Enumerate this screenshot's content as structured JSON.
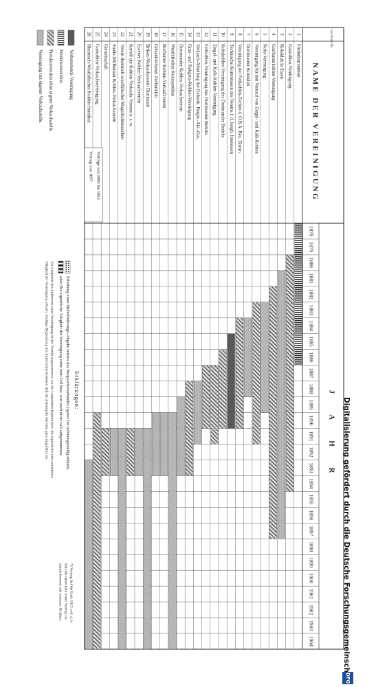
{
  "header": {
    "nr_label": "Lau-fende Nr.",
    "name_label": "NAME DER VEREINIGUNG",
    "years_label": "J A H R"
  },
  "years": [
    1878,
    1879,
    1880,
    1881,
    1882,
    1883,
    1884,
    1885,
    1886,
    1887,
    1888,
    1889,
    1890,
    1891,
    1892,
    1893,
    1894,
    1895,
    1896,
    1897,
    1898,
    1899,
    1900,
    1901,
    1902,
    1903,
    1904
  ],
  "rows": [
    {
      "nr": 1,
      "name": "Förderkonvention",
      "start": 1878,
      "end": 1886,
      "pattern": "vertical-stripes"
    },
    {
      "nr": 2,
      "name": "Gaskohlen-Vereinigung",
      "start": 1880,
      "end": 1894,
      "pattern": "diagonal-hatch"
    },
    {
      "nr": 3,
      "name": "Koksklub in Essen",
      "start": 1881,
      "end": 1897,
      "pattern": "solid-light"
    },
    {
      "nr": 4,
      "name": "Gasflammkohlen-Vereinigung",
      "start": 1882,
      "end": 1897,
      "pattern": "diagonal-hatch"
    },
    {
      "nr": 5,
      "name": "Koks-Vereinigung",
      "start": 1883,
      "end": 1889,
      "pattern": "solid-light"
    },
    {
      "nr": 6,
      "name": "Vereinigung für den Verkauf von Ziegel- und Kalk-Kohlen",
      "start": 1883,
      "end": 1891,
      "pattern": "diagonal-hatch"
    },
    {
      "nr": 7,
      "name": "Dortmunder Koksklub",
      "start": 1884,
      "end": 1888,
      "pattern": "solid-light"
    },
    {
      "nr": 8,
      "name": "Vereinigung der Fettkohlen-Zechen d. O.B.A. Bez. Dortm.",
      "start": 1884,
      "end": 1890,
      "pattern": "diagonal-hatch"
    },
    {
      "nr": 9,
      "name": "Technische Kommission des Vereins f. d. bergb. Interessen",
      "start": 1885,
      "end": 1890,
      "pattern": "solid-dark"
    },
    {
      "nr": 10,
      "name": "Kokskohlen-Vereinigung des Dortmunder Bezirks",
      "start": 1886,
      "end": 1890,
      "pattern": "diagonal-hatch"
    },
    {
      "nr": 11,
      "name": "Ziegel- und Kalk-Kohlen-Vereinigung",
      "start": 1887,
      "end": 1891,
      "pattern": "diagonal-hatch"
    },
    {
      "nr": 12,
      "name": "Fettkohlen-Vereinigung des Dortmunder Bezirks",
      "start": 1887,
      "end": 1890,
      "pattern": "diagonal-hatch"
    },
    {
      "nr": 13,
      "name": "Verkaufs-Abteilung der Gelsenk. Bergw.-Akt.-Ges.",
      "start": 1888,
      "end": 1891,
      "pattern": "solid-light"
    },
    {
      "nr": 14,
      "name": "Grus- und Siebgrus-Kohlen-Vereinigung",
      "start": 1888,
      "end": 1893,
      "pattern": "diagonal-hatch"
    },
    {
      "nr": 15,
      "name": "Dortmunder Kohlen-Verkaufsverein",
      "start": 1889,
      "end": 1893,
      "pattern": "solid-light"
    },
    {
      "nr": 16,
      "name": "Westfälisches Kokssyndikat",
      "start": 1890,
      "end": 1904,
      "pattern": "solid-light"
    },
    {
      "nr": 17,
      "name": "Bochumer Kohlen-Verkaufsverein",
      "start": 1890,
      "end": 1893,
      "pattern": "solid-light"
    },
    {
      "nr": 18,
      "name": "Gelsenkirchener Zechenklub",
      "start": 1890,
      "end": 1893,
      "pattern": "solid-light"
    },
    {
      "nr": 19,
      "name": "Brikett-Verkaufsverein Dortmund",
      "start": 1891,
      "end": 1904,
      "pattern": "solid-light"
    },
    {
      "nr": 20,
      "name": "Essener Kohlen-Verkaufsverein",
      "start": 1891,
      "end": 1893,
      "pattern": "solid-light"
    },
    {
      "nr": 21,
      "name": "Kartell der Kohlen-Verkaufs-Vereine u. s. w.",
      "start": 1891,
      "end": 1893,
      "pattern": "diagonal-hatch"
    },
    {
      "nr": 22,
      "name": "Verein rheinisch-westfälischer Magerkohlenzechen",
      "start": 1891,
      "end": 1904,
      "pattern": "solid-light"
    },
    {
      "nr": 23,
      "name": "Steele-Mülheimer Kohlen-Verkaufsverein",
      "start": 1891,
      "end": 1893,
      "pattern": "solid-light"
    },
    {
      "nr": 24,
      "name": "Gemeinschaft",
      "start": 1891,
      "end": 1893,
      "pattern": "diagonal-hatch"
    },
    {
      "nr": 25,
      "name": "Gaskohlen-Verkaufsvereinigung",
      "start": 1890,
      "end": 1904,
      "pattern": "diagonal-hatch"
    },
    {
      "nr": 26,
      "name": "Rheinisch-Westfälisches Kohlen-Syndikat",
      "start": 1893,
      "end": 1904,
      "pattern": "solid-light"
    }
  ],
  "contracts": [
    "Verträge von 1889 bis 1895",
    "Vertrag von 1897"
  ],
  "legend": [
    {
      "pattern": "solid-dark",
      "label": "Vorbereitende Vereinigung."
    },
    {
      "pattern": "vertical-stripes",
      "label": "Förderkonvention."
    },
    {
      "pattern": "diagonal-hatch",
      "label": "Preiskonvention ohne eigene Verkaufsstelle."
    },
    {
      "pattern": "solid-light",
      "label": "Vereinigung mit eigener Verkaufsstelle."
    }
  ],
  "explanations": {
    "title": "Erklärungen:",
    "items": [
      {
        "pattern": "dots",
        "label": "Erhöhung einer Mehrförderungs-Abgabe seitens des Bergwerksverbandes (später für rechnungsmäßig erklärt)."
      },
      {
        "pattern": "vertical-bars",
        "label": "oder   Die eigentliche Tätigkeit der Vereinigung ruhte zum Teil bzw. war noch nicht voll aufgenommen."
      }
    ],
    "text": [
      "Als Zeitpunkt des Aufhörens einer Vereinigung ist der Termin angenommen, wo die Liquidation beginnt bzw. die eigentliche oder produktive",
      "Tätigkeit der Vereinigung erlosch. Zackige Begrenzung des Endtermins bedeutet, daß die Zeitangabe nur eine ganz ungefähre ist."
    ]
  },
  "footnote": [
    "*) Vertrag lief bis Ende 1915 evtl. d. h.",
    "falls bis dahin kein neuer Vertrag zu-",
    "stande kommt, mit weiteren 10 Jahre."
  ],
  "footer": {
    "text": "Digitalisierung gefördert durch die Deutsche Forschungsgemeinschaft",
    "logo": "DFG"
  }
}
